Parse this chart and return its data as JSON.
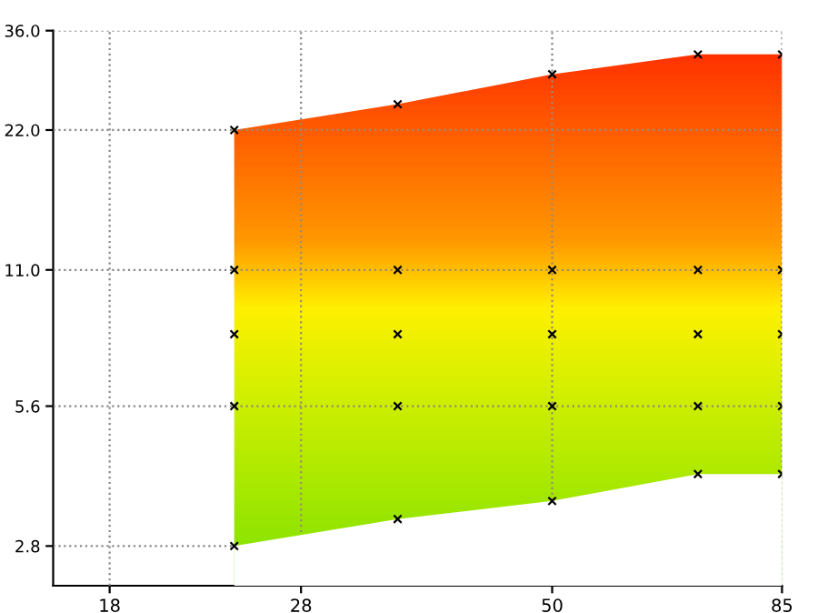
{
  "chart_data": {
    "type": "area",
    "log": "xy",
    "grid": true,
    "series": [
      {
        "color": "#ff9900",
        "x": [
          24,
          35,
          50,
          70,
          85
        ],
        "values": [
          22,
          25,
          29,
          32,
          32
        ]
      },
      {
        "color": "#ffffff",
        "x": [
          24,
          35,
          50,
          70,
          85
        ],
        "values": [
          2.8,
          3.2,
          3.5,
          4.0,
          4.0
        ]
      },
      {
        "type": "scatter",
        "marker": "cross",
        "color": "#000000",
        "x": [
          24,
          35,
          50,
          70,
          85,
          24,
          35,
          50,
          70,
          85,
          24,
          35,
          50,
          70,
          85,
          24,
          35,
          50,
          70,
          85,
          24,
          35,
          50,
          70,
          85
        ],
        "values": [
          22,
          25,
          29,
          32,
          32,
          11,
          11,
          11,
          11,
          11,
          8,
          8,
          8,
          8,
          8,
          5.6,
          5.6,
          5.6,
          5.6,
          5.6,
          2.8,
          3.2,
          3.5,
          4.0,
          4.0
        ]
      }
    ],
    "xlim": [
      15.8,
      85
    ],
    "ylim": [
      2.3,
      36
    ],
    "xticks": [
      18,
      28,
      50,
      85
    ],
    "yticks": [
      {
        "value": 2.8,
        "label": "2.8"
      },
      {
        "value": 5.6,
        "label": "5.6"
      },
      {
        "value": 11,
        "label": "11.0"
      },
      {
        "value": 22,
        "label": "22.0"
      },
      {
        "value": 36,
        "label": "36.0"
      }
    ]
  }
}
